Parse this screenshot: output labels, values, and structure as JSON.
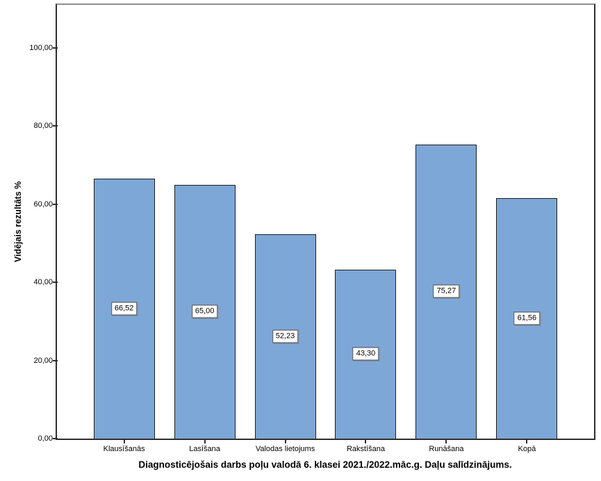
{
  "chart_data": {
    "type": "bar",
    "title": "Diagnosticējošais darbs poļu valodā 6. klasei 2021./2022.māc.g. Daļu salīdzinājums.",
    "ylabel": "Vidējais rezultāts %",
    "xlabel": "",
    "categories": [
      "Klausīšanās",
      "Lasīšana",
      "Valodas lietojums",
      "Rakstīšana",
      "Runāšana",
      "Kopā"
    ],
    "values": [
      66.52,
      65.0,
      52.23,
      43.3,
      75.27,
      61.56
    ],
    "value_labels": [
      "66,52",
      "65,00",
      "52,23",
      "43,30",
      "75,27",
      "61,56"
    ],
    "yticks": [
      0,
      20,
      40,
      60,
      80,
      100
    ],
    "ytick_labels": [
      "0,00",
      "20,00",
      "40,00",
      "60,00",
      "80,00",
      "100,00"
    ],
    "ylim": [
      0,
      111
    ],
    "grid": false,
    "legend_position": "none",
    "bar_color": "#7DA7D7",
    "bar_border_color": "#1c1c1c",
    "value_box_bg": "#ffffff",
    "value_box_border": "#4a4a4a",
    "frame_color": "#2e2e2e"
  }
}
